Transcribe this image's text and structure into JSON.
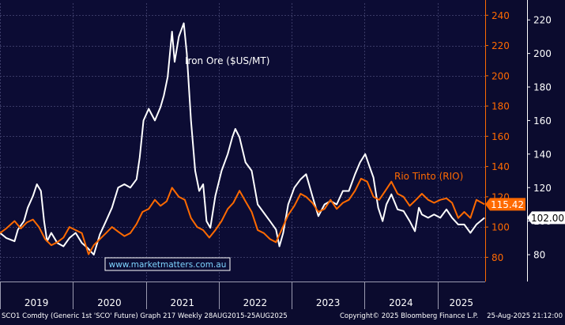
{
  "chart_data": {
    "type": "line",
    "x_range": [
      "2019-01",
      "2025-08"
    ],
    "x_ticks": [
      "2019",
      "2020",
      "2021",
      "2022",
      "2023",
      "2024",
      "2025"
    ],
    "grid": true,
    "axes": {
      "left": {
        "label": "",
        "ticks": [
          80,
          100,
          120,
          140,
          160,
          180,
          200,
          220,
          240
        ],
        "range": [
          64,
          248
        ],
        "color": "#ff6a00"
      },
      "right": {
        "label": "",
        "ticks": [
          80,
          100,
          120,
          140,
          160,
          180,
          200,
          220
        ],
        "range": [
          64,
          230
        ],
        "color": "#ffffff"
      }
    },
    "series": [
      {
        "name": "Iron Ore ($US/MT)",
        "axis": "right",
        "color": "#ffffff",
        "last_value": "102.00",
        "points": [
          [
            "2019-01-01",
            93
          ],
          [
            "2019-02-01",
            90
          ],
          [
            "2019-03-15",
            88
          ],
          [
            "2019-04-01",
            95
          ],
          [
            "2019-05-01",
            100
          ],
          [
            "2019-05-20",
            108
          ],
          [
            "2019-06-15",
            115
          ],
          [
            "2019-07-05",
            122
          ],
          [
            "2019-07-25",
            118
          ],
          [
            "2019-08-10",
            100
          ],
          [
            "2019-08-25",
            88
          ],
          [
            "2019-09-15",
            93
          ],
          [
            "2019-10-15",
            87
          ],
          [
            "2019-11-15",
            85
          ],
          [
            "2019-12-15",
            90
          ],
          [
            "2020-01-15",
            93
          ],
          [
            "2020-02-15",
            87
          ],
          [
            "2020-03-15",
            84
          ],
          [
            "2020-04-15",
            80
          ],
          [
            "2020-05-15",
            92
          ],
          [
            "2020-06-15",
            100
          ],
          [
            "2020-07-15",
            108
          ],
          [
            "2020-08-15",
            120
          ],
          [
            "2020-09-15",
            122
          ],
          [
            "2020-10-15",
            120
          ],
          [
            "2020-11-15",
            125
          ],
          [
            "2020-12-01",
            138
          ],
          [
            "2020-12-20",
            160
          ],
          [
            "2021-01-15",
            167
          ],
          [
            "2021-02-15",
            160
          ],
          [
            "2021-03-15",
            168
          ],
          [
            "2021-04-01",
            175
          ],
          [
            "2021-04-20",
            186
          ],
          [
            "2021-05-12",
            213
          ],
          [
            "2021-05-25",
            195
          ],
          [
            "2021-06-15",
            210
          ],
          [
            "2021-07-10",
            218
          ],
          [
            "2021-07-25",
            200
          ],
          [
            "2021-08-15",
            160
          ],
          [
            "2021-09-05",
            130
          ],
          [
            "2021-09-25",
            118
          ],
          [
            "2021-10-15",
            122
          ],
          [
            "2021-11-01",
            100
          ],
          [
            "2021-11-20",
            96
          ],
          [
            "2021-12-15",
            115
          ],
          [
            "2022-01-15",
            130
          ],
          [
            "2022-02-15",
            140
          ],
          [
            "2022-03-10",
            150
          ],
          [
            "2022-03-25",
            155
          ],
          [
            "2022-04-15",
            150
          ],
          [
            "2022-05-15",
            135
          ],
          [
            "2022-06-15",
            130
          ],
          [
            "2022-07-15",
            110
          ],
          [
            "2022-08-15",
            105
          ],
          [
            "2022-09-15",
            100
          ],
          [
            "2022-10-15",
            95
          ],
          [
            "2022-11-01",
            85
          ],
          [
            "2022-11-20",
            93
          ],
          [
            "2022-12-15",
            110
          ],
          [
            "2023-01-15",
            120
          ],
          [
            "2023-02-15",
            125
          ],
          [
            "2023-03-15",
            128
          ],
          [
            "2023-04-15",
            115
          ],
          [
            "2023-05-15",
            103
          ],
          [
            "2023-06-15",
            110
          ],
          [
            "2023-07-15",
            112
          ],
          [
            "2023-08-15",
            110
          ],
          [
            "2023-09-15",
            118
          ],
          [
            "2023-10-15",
            118
          ],
          [
            "2023-11-15",
            128
          ],
          [
            "2023-12-10",
            135
          ],
          [
            "2024-01-05",
            140
          ],
          [
            "2024-01-25",
            133
          ],
          [
            "2024-02-15",
            126
          ],
          [
            "2024-03-10",
            108
          ],
          [
            "2024-04-01",
            100
          ],
          [
            "2024-04-20",
            110
          ],
          [
            "2024-05-15",
            116
          ],
          [
            "2024-06-15",
            107
          ],
          [
            "2024-07-15",
            106
          ],
          [
            "2024-08-15",
            100
          ],
          [
            "2024-09-10",
            94
          ],
          [
            "2024-09-30",
            108
          ],
          [
            "2024-10-15",
            104
          ],
          [
            "2024-11-15",
            102
          ],
          [
            "2024-12-15",
            104
          ],
          [
            "2025-01-15",
            102
          ],
          [
            "2025-02-15",
            107
          ],
          [
            "2025-03-15",
            102
          ],
          [
            "2025-04-15",
            98
          ],
          [
            "2025-05-15",
            98
          ],
          [
            "2025-06-15",
            93
          ],
          [
            "2025-07-15",
            98
          ],
          [
            "2025-08-25",
            102
          ]
        ]
      },
      {
        "name": "Rio Tinto (RIO)",
        "axis": "left",
        "color": "#ff6a00",
        "last_value": "115.42",
        "points": [
          [
            "2019-01-01",
            96
          ],
          [
            "2019-02-01",
            99
          ],
          [
            "2019-03-15",
            104
          ],
          [
            "2019-04-15",
            99
          ],
          [
            "2019-05-15",
            103
          ],
          [
            "2019-06-15",
            105
          ],
          [
            "2019-07-15",
            100
          ],
          [
            "2019-08-15",
            92
          ],
          [
            "2019-09-15",
            88
          ],
          [
            "2019-10-15",
            90
          ],
          [
            "2019-11-15",
            93
          ],
          [
            "2019-12-15",
            100
          ],
          [
            "2020-01-15",
            98
          ],
          [
            "2020-02-15",
            96
          ],
          [
            "2020-03-20",
            82
          ],
          [
            "2020-04-15",
            88
          ],
          [
            "2020-05-15",
            92
          ],
          [
            "2020-06-15",
            96
          ],
          [
            "2020-07-15",
            100
          ],
          [
            "2020-08-15",
            97
          ],
          [
            "2020-09-15",
            94
          ],
          [
            "2020-10-15",
            96
          ],
          [
            "2020-11-15",
            102
          ],
          [
            "2020-12-15",
            110
          ],
          [
            "2021-01-15",
            112
          ],
          [
            "2021-02-15",
            118
          ],
          [
            "2021-03-15",
            114
          ],
          [
            "2021-04-15",
            117
          ],
          [
            "2021-05-12",
            126
          ],
          [
            "2021-06-15",
            120
          ],
          [
            "2021-07-15",
            118
          ],
          [
            "2021-08-15",
            106
          ],
          [
            "2021-09-15",
            100
          ],
          [
            "2021-10-15",
            98
          ],
          [
            "2021-11-15",
            93
          ],
          [
            "2021-12-15",
            98
          ],
          [
            "2022-01-15",
            104
          ],
          [
            "2022-02-15",
            112
          ],
          [
            "2022-03-15",
            116
          ],
          [
            "2022-04-15",
            124
          ],
          [
            "2022-05-15",
            117
          ],
          [
            "2022-06-15",
            110
          ],
          [
            "2022-07-15",
            98
          ],
          [
            "2022-08-15",
            96
          ],
          [
            "2022-09-15",
            92
          ],
          [
            "2022-10-15",
            90
          ],
          [
            "2022-11-15",
            99
          ],
          [
            "2022-12-15",
            108
          ],
          [
            "2023-01-15",
            114
          ],
          [
            "2023-02-15",
            122
          ],
          [
            "2023-03-15",
            120
          ],
          [
            "2023-04-15",
            116
          ],
          [
            "2023-05-15",
            110
          ],
          [
            "2023-06-15",
            112
          ],
          [
            "2023-07-15",
            118
          ],
          [
            "2023-08-15",
            112
          ],
          [
            "2023-09-15",
            116
          ],
          [
            "2023-10-15",
            118
          ],
          [
            "2023-11-15",
            124
          ],
          [
            "2023-12-15",
            132
          ],
          [
            "2024-01-15",
            130
          ],
          [
            "2024-02-15",
            120
          ],
          [
            "2024-03-15",
            118
          ],
          [
            "2024-04-15",
            124
          ],
          [
            "2024-05-15",
            130
          ],
          [
            "2024-06-15",
            122
          ],
          [
            "2024-07-15",
            120
          ],
          [
            "2024-08-15",
            114
          ],
          [
            "2024-09-15",
            118
          ],
          [
            "2024-10-15",
            122
          ],
          [
            "2024-11-15",
            118
          ],
          [
            "2024-12-15",
            116
          ],
          [
            "2025-01-15",
            118
          ],
          [
            "2025-02-15",
            119
          ],
          [
            "2025-03-15",
            116
          ],
          [
            "2025-04-15",
            106
          ],
          [
            "2025-05-15",
            110
          ],
          [
            "2025-06-15",
            106
          ],
          [
            "2025-07-15",
            118
          ],
          [
            "2025-08-25",
            115
          ]
        ]
      }
    ],
    "annotations": [
      "Iron Ore ($US/MT)",
      "Rio Tinto (RIO)"
    ]
  },
  "watermark": "www.marketmatters.com.au",
  "footer": {
    "left": "SCO1 Comdty (Generic 1st 'SCO' Future) Graph 217  Weekly 28AUG2015-25AUG2025",
    "center": "Copyright© 2025 Bloomberg Finance L.P.",
    "right": "25-Aug-2025 21:12:00"
  }
}
